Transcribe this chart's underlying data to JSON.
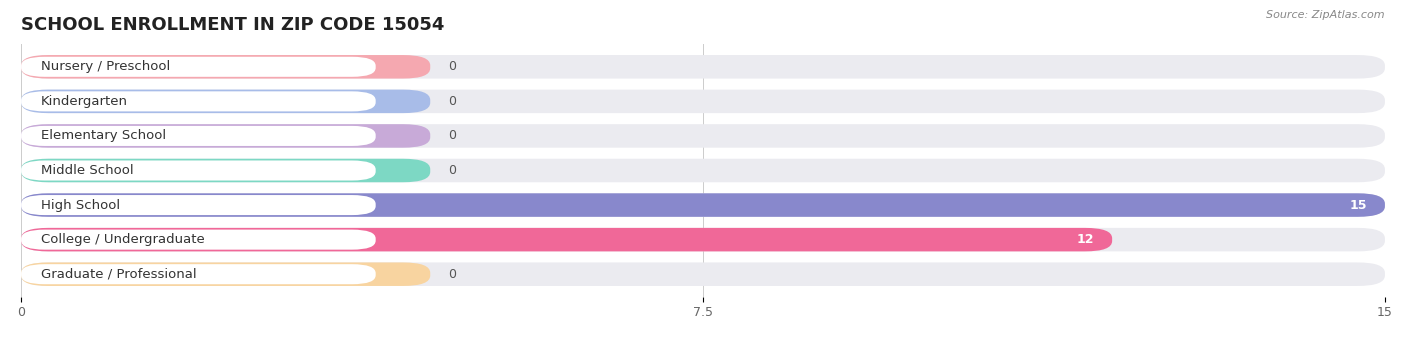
{
  "title": "SCHOOL ENROLLMENT IN ZIP CODE 15054",
  "source": "Source: ZipAtlas.com",
  "categories": [
    "Nursery / Preschool",
    "Kindergarten",
    "Elementary School",
    "Middle School",
    "High School",
    "College / Undergraduate",
    "Graduate / Professional"
  ],
  "values": [
    0,
    0,
    0,
    0,
    15,
    12,
    0
  ],
  "bar_colors": [
    "#f5a8b0",
    "#a8bce8",
    "#c8aad8",
    "#7dd8c4",
    "#8888cc",
    "#f06898",
    "#f8d4a0"
  ],
  "background_color": "#ffffff",
  "bar_bg_color": "#ebebf0",
  "xlim": [
    0,
    15
  ],
  "xticks": [
    0,
    7.5,
    15
  ],
  "title_fontsize": 13,
  "label_fontsize": 9.5,
  "value_fontsize": 9
}
